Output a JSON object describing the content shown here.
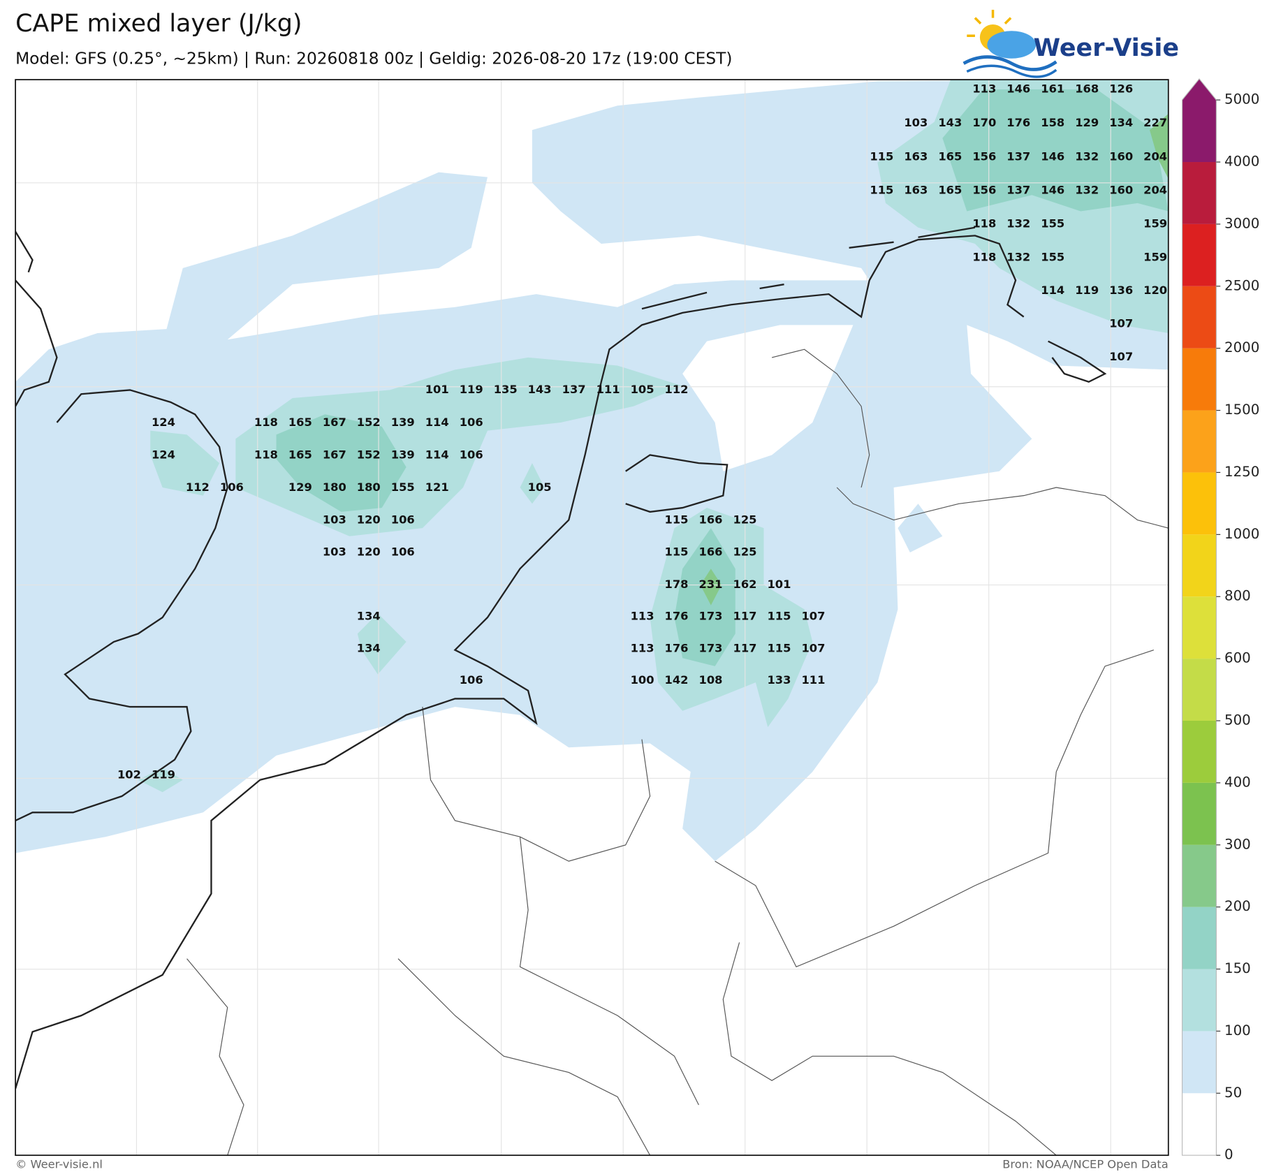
{
  "header": {
    "title": "CAPE mixed layer (J/kg)",
    "subtitle": "Model: GFS (0.25°, ~25km)  |  Run: 20260818 00z  |  Geldig: 2026-08-20 17z (19:00 CEST)",
    "logo": "Weer-Visie"
  },
  "map": {
    "value_labels": [
      [
        null,
        null,
        null,
        null,
        null,
        null,
        null,
        null,
        null,
        null,
        null,
        null,
        null,
        null,
        null,
        null,
        null,
        null,
        null,
        null,
        null,
        null,
        null,
        null,
        null,
        113,
        146,
        161,
        168,
        126,
        null
      ],
      [
        null,
        null,
        null,
        null,
        null,
        null,
        null,
        null,
        null,
        null,
        null,
        null,
        null,
        null,
        null,
        null,
        null,
        null,
        null,
        null,
        null,
        null,
        null,
        103,
        143,
        170,
        176,
        158,
        129,
        134,
        227
      ],
      [
        null,
        null,
        null,
        null,
        null,
        null,
        null,
        null,
        null,
        null,
        null,
        null,
        null,
        null,
        null,
        null,
        null,
        null,
        null,
        null,
        null,
        null,
        115,
        163,
        165,
        156,
        137,
        146,
        132,
        160,
        204
      ],
      [
        null,
        null,
        null,
        null,
        null,
        null,
        null,
        null,
        null,
        null,
        null,
        null,
        null,
        null,
        null,
        null,
        null,
        null,
        null,
        null,
        null,
        null,
        115,
        163,
        165,
        156,
        137,
        146,
        132,
        160,
        204
      ],
      [
        null,
        null,
        null,
        null,
        null,
        null,
        null,
        null,
        null,
        null,
        null,
        null,
        null,
        null,
        null,
        null,
        null,
        null,
        null,
        null,
        null,
        null,
        null,
        null,
        null,
        118,
        132,
        155,
        null,
        null,
        159
      ],
      [
        null,
        null,
        null,
        null,
        null,
        null,
        null,
        null,
        null,
        null,
        null,
        null,
        null,
        null,
        null,
        null,
        null,
        null,
        null,
        null,
        null,
        null,
        null,
        null,
        null,
        118,
        132,
        155,
        null,
        null,
        159
      ],
      [
        null,
        null,
        null,
        null,
        null,
        null,
        null,
        null,
        null,
        null,
        null,
        null,
        null,
        null,
        null,
        null,
        null,
        null,
        null,
        null,
        null,
        null,
        null,
        null,
        null,
        null,
        null,
        114,
        119,
        136,
        120
      ],
      [
        null,
        null,
        null,
        null,
        null,
        null,
        null,
        null,
        null,
        null,
        null,
        null,
        null,
        null,
        null,
        null,
        null,
        null,
        null,
        null,
        null,
        null,
        null,
        null,
        null,
        null,
        null,
        null,
        null,
        107,
        null
      ],
      [
        null,
        null,
        null,
        null,
        null,
        null,
        null,
        null,
        null,
        null,
        null,
        null,
        null,
        null,
        null,
        null,
        null,
        null,
        null,
        null,
        null,
        null,
        null,
        null,
        null,
        null,
        null,
        null,
        null,
        107,
        null
      ],
      [
        null,
        null,
        null,
        null,
        null,
        null,
        null,
        null,
        null,
        101,
        119,
        135,
        143,
        137,
        111,
        105,
        112,
        null,
        null,
        null,
        null,
        null,
        null,
        null,
        null,
        null,
        null,
        null,
        null,
        null,
        null
      ],
      [
        null,
        124,
        null,
        null,
        118,
        165,
        167,
        152,
        139,
        114,
        106,
        null,
        null,
        null,
        null,
        null,
        null,
        null,
        null,
        null,
        null,
        null,
        null,
        null,
        null,
        null,
        null,
        null,
        null,
        null,
        null
      ],
      [
        null,
        124,
        null,
        null,
        118,
        165,
        167,
        152,
        139,
        114,
        106,
        null,
        null,
        null,
        null,
        null,
        null,
        null,
        null,
        null,
        null,
        null,
        null,
        null,
        null,
        null,
        null,
        null,
        null,
        null,
        null
      ],
      [
        null,
        null,
        112,
        106,
        null,
        129,
        180,
        180,
        155,
        121,
        null,
        null,
        105,
        null,
        null,
        null,
        null,
        null,
        null,
        null,
        null,
        null,
        null,
        null,
        null,
        null,
        null,
        null,
        null,
        null,
        null
      ],
      [
        null,
        null,
        null,
        null,
        null,
        null,
        103,
        120,
        106,
        null,
        null,
        null,
        null,
        null,
        null,
        null,
        115,
        166,
        125,
        null,
        null,
        null,
        null,
        null,
        null,
        null,
        null,
        null,
        null,
        null,
        null
      ],
      [
        null,
        null,
        null,
        null,
        null,
        null,
        103,
        120,
        106,
        null,
        null,
        null,
        null,
        null,
        null,
        null,
        115,
        166,
        125,
        null,
        null,
        null,
        null,
        null,
        null,
        null,
        null,
        null,
        null,
        null,
        null
      ],
      [
        null,
        null,
        null,
        null,
        null,
        null,
        null,
        null,
        null,
        null,
        null,
        null,
        null,
        null,
        null,
        null,
        178,
        231,
        162,
        101,
        null,
        null,
        null,
        null,
        null,
        null,
        null,
        null,
        null,
        null,
        null
      ],
      [
        null,
        null,
        null,
        null,
        null,
        null,
        null,
        134,
        null,
        null,
        null,
        null,
        null,
        null,
        null,
        113,
        176,
        173,
        117,
        115,
        107,
        null,
        null,
        null,
        null,
        null,
        null,
        null,
        null,
        null,
        null
      ],
      [
        null,
        null,
        null,
        null,
        null,
        null,
        null,
        134,
        null,
        null,
        null,
        null,
        null,
        null,
        null,
        113,
        176,
        173,
        117,
        115,
        107,
        null,
        null,
        null,
        null,
        null,
        null,
        null,
        null,
        null,
        null
      ],
      [
        null,
        null,
        null,
        null,
        null,
        null,
        null,
        null,
        null,
        null,
        106,
        null,
        null,
        null,
        null,
        100,
        142,
        108,
        null,
        133,
        111,
        null,
        null,
        null,
        null,
        null,
        null,
        null,
        null,
        null,
        null
      ],
      [
        null,
        null,
        null,
        null,
        null,
        null,
        null,
        null,
        null,
        null,
        null,
        null,
        null,
        null,
        null,
        null,
        null,
        null,
        null,
        null,
        null,
        null,
        null,
        null,
        null,
        null,
        null,
        null,
        null,
        null,
        null
      ],
      [
        null,
        null,
        null,
        null,
        null,
        null,
        null,
        null,
        null,
        null,
        null,
        null,
        null,
        null,
        null,
        null,
        null,
        null,
        null,
        null,
        null,
        null,
        null,
        null,
        null,
        null,
        null,
        null,
        null,
        null,
        null
      ],
      [
        102,
        119,
        null,
        null,
        null,
        null,
        null,
        null,
        null,
        null,
        null,
        null,
        null,
        null,
        null,
        null,
        null,
        null,
        null,
        null,
        null,
        null,
        null,
        null,
        null,
        null,
        null,
        null,
        null,
        null,
        null
      ]
    ]
  },
  "colorbar": {
    "ticks": [
      0,
      50,
      100,
      150,
      200,
      300,
      400,
      500,
      600,
      800,
      1000,
      1250,
      1500,
      2000,
      2500,
      3000,
      4000,
      5000
    ],
    "colors": [
      "#ffffff",
      "#d0e6f5",
      "#b3e0df",
      "#93d3c6",
      "#86c98a",
      "#7cc24f",
      "#9ccc3c",
      "#c4dc48",
      "#dde03a",
      "#f2d41a",
      "#fcc10a",
      "#fca21a",
      "#f77b0a",
      "#ec4b15",
      "#dc2020",
      "#b91c3c",
      "#8b1a6b"
    ]
  },
  "footer": {
    "left": "© Weer-visie.nl",
    "right": "Bron: NOAA/NCEP Open Data"
  }
}
